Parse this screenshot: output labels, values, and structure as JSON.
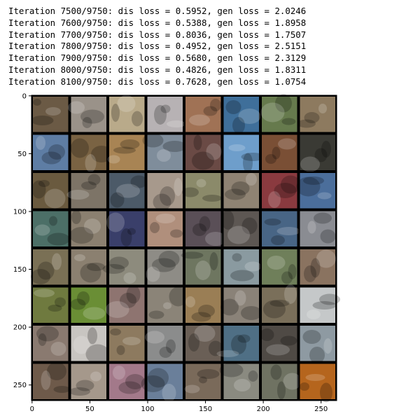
{
  "log": {
    "lines": [
      "Iteration 7500/9750: dis loss = 0.5952, gen loss = 2.0246",
      "Iteration 7600/9750: dis loss = 0.5388, gen loss = 1.8958",
      "Iteration 7700/9750: dis loss = 0.8036, gen loss = 1.7507",
      "Iteration 7800/9750: dis loss = 0.4952, gen loss = 2.5151",
      "Iteration 7900/9750: dis loss = 0.5680, gen loss = 2.3129",
      "Iteration 8000/9750: dis loss = 0.4826, gen loss = 1.8311",
      "Iteration 8100/9750: dis loss = 0.7628, gen loss = 1.0754"
    ]
  },
  "image_grid": {
    "rows": 8,
    "cols": 8,
    "extent": [
      0,
      264
    ],
    "x_ticks": [
      "0",
      "50",
      "100",
      "150",
      "200",
      "250"
    ],
    "y_ticks": [
      "0",
      "50",
      "100",
      "150",
      "200",
      "250"
    ],
    "x_tick_values": [
      0,
      50,
      100,
      150,
      200,
      250
    ],
    "y_tick_values": [
      0,
      50,
      100,
      150,
      200,
      250
    ],
    "border_color": "#000000",
    "tile_colors": [
      [
        "#6b5a45",
        "#9a9289",
        "#b9aa8a",
        "#b7b2b4",
        "#a07255",
        "#3f6f9a",
        "#667a4d",
        "#8d7a5f"
      ],
      [
        "#5e7da4",
        "#7a6343",
        "#a88454",
        "#7f8d9b",
        "#6a4a45",
        "#6e9ecb",
        "#7a4f35",
        "#3a3a34"
      ],
      [
        "#6a5a3f",
        "#7d7467",
        "#4c5a68",
        "#a7998c",
        "#8b8a6a",
        "#8f8373",
        "#8a3a3f",
        "#4b6e9b"
      ],
      [
        "#4c6f67",
        "#8b8070",
        "#3a3f6a",
        "#b08f7c",
        "#5a4f57",
        "#5d5753",
        "#486585",
        "#8a8c92"
      ],
      [
        "#7a7055",
        "#8b8070",
        "#8d8b7d",
        "#8e8c86",
        "#6e7660",
        "#8a9aa0",
        "#6f7f5a",
        "#8a7360"
      ],
      [
        "#6f7a3f",
        "#6a8e35",
        "#8e7470",
        "#8b8478",
        "#9a7e55",
        "#8a8278",
        "#7a6f5a",
        "#c5c8c9"
      ],
      [
        "#8a7a70",
        "#c8c5c1",
        "#8d7a5f",
        "#8b8c8c",
        "#6a5f56",
        "#4f6f85",
        "#4f4a45",
        "#8e9aa2"
      ],
      [
        "#6e5a4a",
        "#a5988b",
        "#a3798a",
        "#6a7f9a",
        "#7a6a5a",
        "#8a8a80",
        "#6f7262",
        "#b5651d"
      ]
    ]
  }
}
